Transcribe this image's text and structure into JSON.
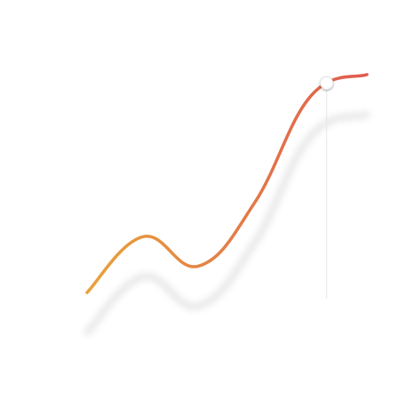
{
  "chart_data": {
    "type": "line",
    "title": "",
    "xlabel": "",
    "ylabel": "",
    "grid": false,
    "legend_position": "top-center",
    "x": [
      0,
      1,
      2,
      3,
      4,
      5
    ],
    "xlim": [
      0,
      5
    ],
    "ylim": [
      0,
      100
    ],
    "series": [
      {
        "name": "",
        "values": [
          10,
          31,
          20,
          44,
          84,
          92
        ],
        "color_start": "#e8a23c",
        "color_end": "#e05a4f"
      }
    ],
    "highlight": {
      "x": 4.28,
      "y": 85
    }
  }
}
